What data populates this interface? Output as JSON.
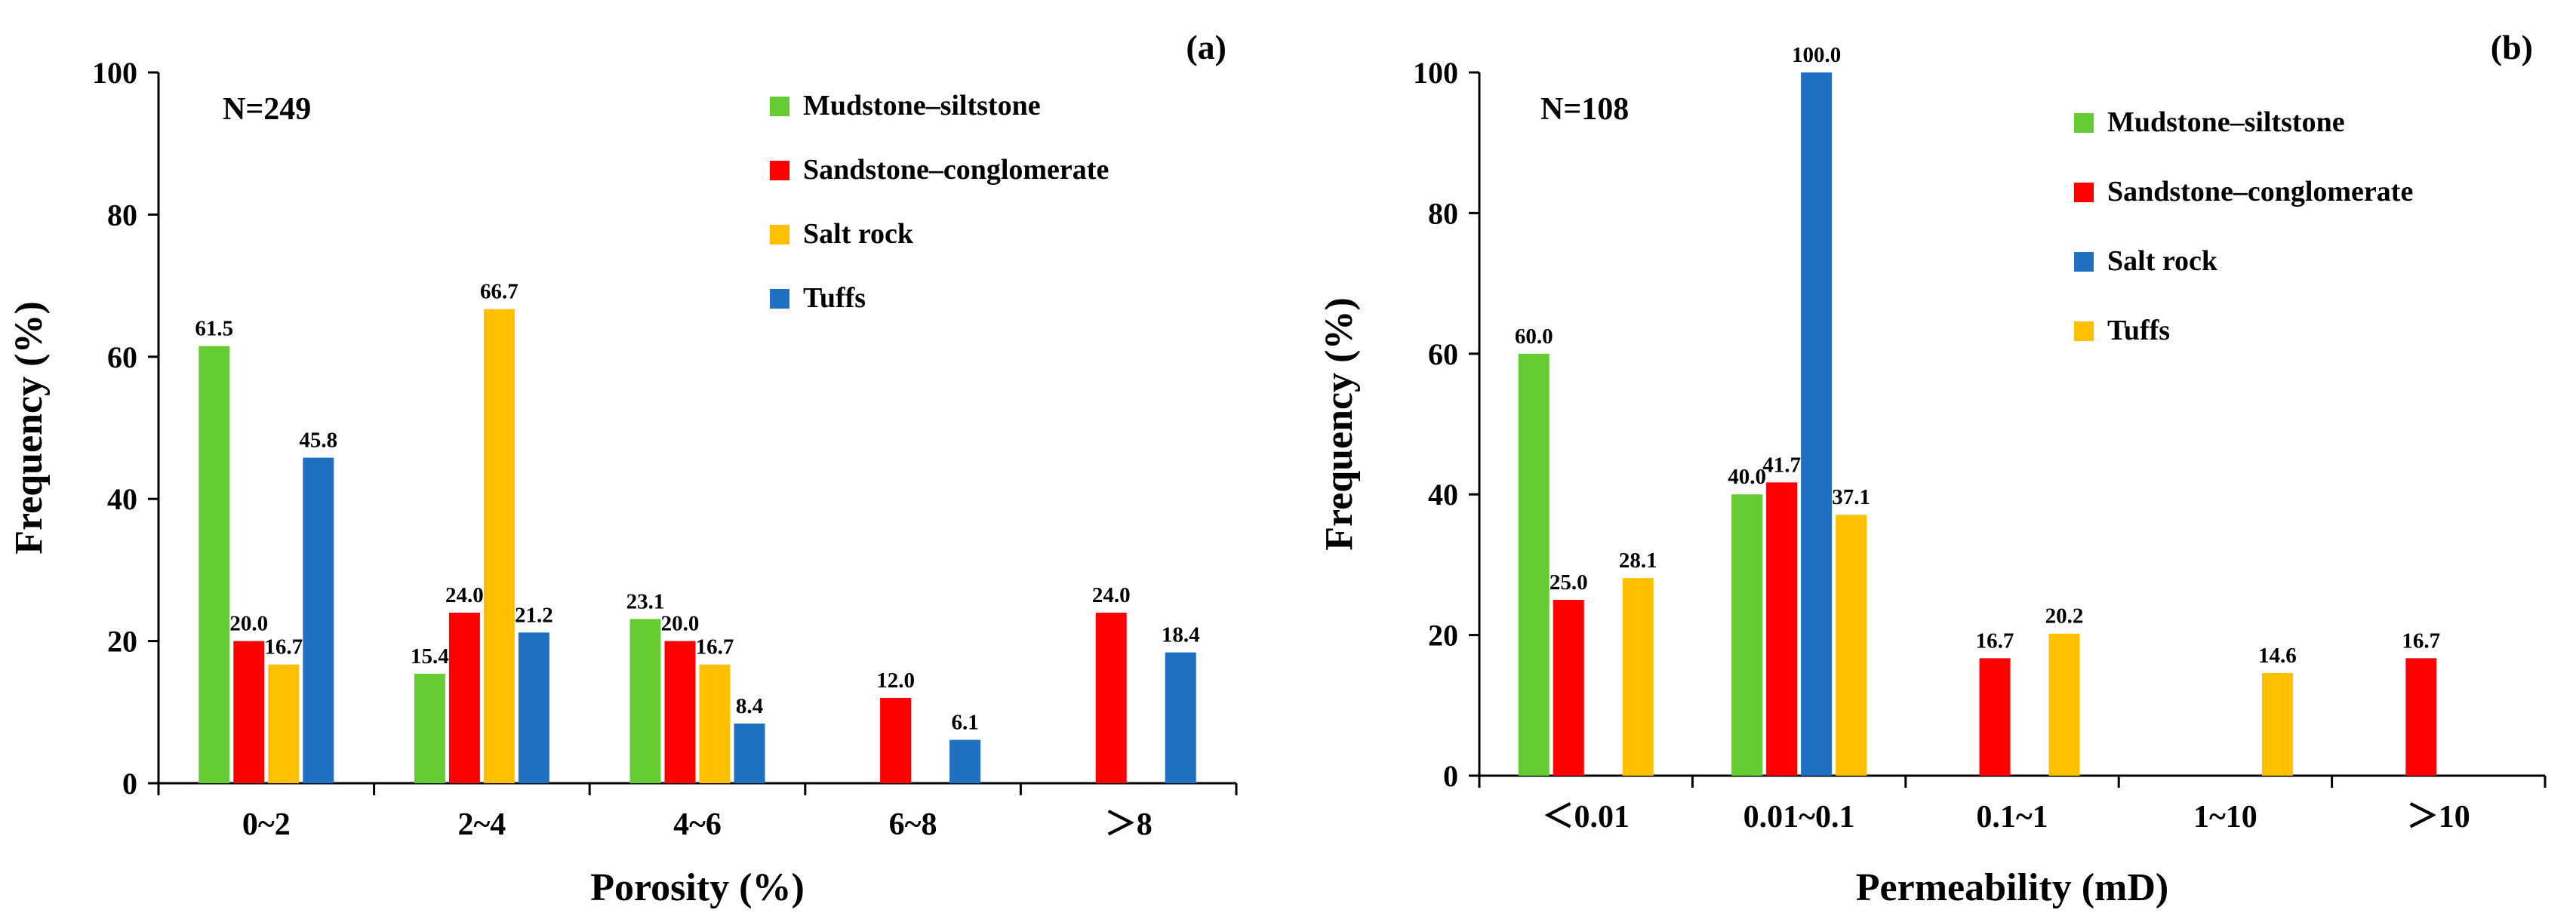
{
  "chart_data": [
    {
      "type": "bar",
      "panel_label": "(a)",
      "annotation": "N=249",
      "xlabel": "Porosity (%)",
      "ylabel": "Frequency (%)",
      "ylim": [
        0,
        100
      ],
      "yticks": [
        "0",
        "20",
        "40",
        "60",
        "80",
        "100"
      ],
      "categories": [
        "0~2",
        "2~4",
        "4~6",
        "6~8",
        "＞8"
      ],
      "legend_position": "top-right",
      "series": [
        {
          "name": "Mudstone–siltstone",
          "color": "#66CC33",
          "values": [
            61.5,
            15.4,
            23.1,
            null,
            null
          ],
          "labels": [
            "61.5",
            "15.4",
            "23.1",
            null,
            null
          ]
        },
        {
          "name": "Sandstone–conglomerate",
          "color": "#FF0000",
          "values": [
            20.0,
            24.0,
            20.0,
            12.0,
            24.0
          ],
          "labels": [
            "20.0",
            "24.0",
            "20.0",
            "12.0",
            "24.0"
          ]
        },
        {
          "name": "Salt rock",
          "color": "#FFC000",
          "values": [
            16.7,
            66.7,
            16.7,
            null,
            null
          ],
          "labels": [
            "16.7",
            "66.7",
            "16.7",
            null,
            null
          ]
        },
        {
          "name": "Tuffs",
          "color": "#1F70C1",
          "values": [
            45.8,
            21.2,
            8.4,
            6.1,
            18.4
          ],
          "labels": [
            "45.8",
            "21.2",
            "8.4",
            "6.1",
            "18.4"
          ]
        }
      ]
    },
    {
      "type": "bar",
      "panel_label": "(b)",
      "annotation": "N=108",
      "xlabel": "Permeability (mD)",
      "ylabel": "Frequency (%)",
      "ylim": [
        0,
        100
      ],
      "yticks": [
        "0",
        "20",
        "40",
        "60",
        "80",
        "100"
      ],
      "categories": [
        "＜0.01",
        "0.01~0.1",
        "0.1~1",
        "1~10",
        "＞10"
      ],
      "legend_position": "top-right",
      "series": [
        {
          "name": "Mudstone–siltstone",
          "color": "#66CC33",
          "values": [
            60.0,
            40.0,
            null,
            null,
            null
          ],
          "labels": [
            "60.0",
            "40.0",
            null,
            null,
            null
          ]
        },
        {
          "name": "Sandstone–conglomerate",
          "color": "#FF0000",
          "values": [
            25.0,
            41.7,
            16.7,
            null,
            16.7
          ],
          "labels": [
            "25.0",
            "41.7",
            "16.7",
            null,
            "16.7"
          ]
        },
        {
          "name": "Salt rock",
          "color": "#1F70C1",
          "values": [
            null,
            100.0,
            null,
            null,
            null
          ],
          "labels": [
            null,
            "100.0",
            null,
            null,
            null
          ]
        },
        {
          "name": "Tuffs",
          "color": "#FFC000",
          "values": [
            28.1,
            37.1,
            20.2,
            14.6,
            null
          ],
          "labels": [
            "28.1",
            "37.1",
            "20.2",
            "14.6",
            null
          ]
        }
      ]
    }
  ]
}
